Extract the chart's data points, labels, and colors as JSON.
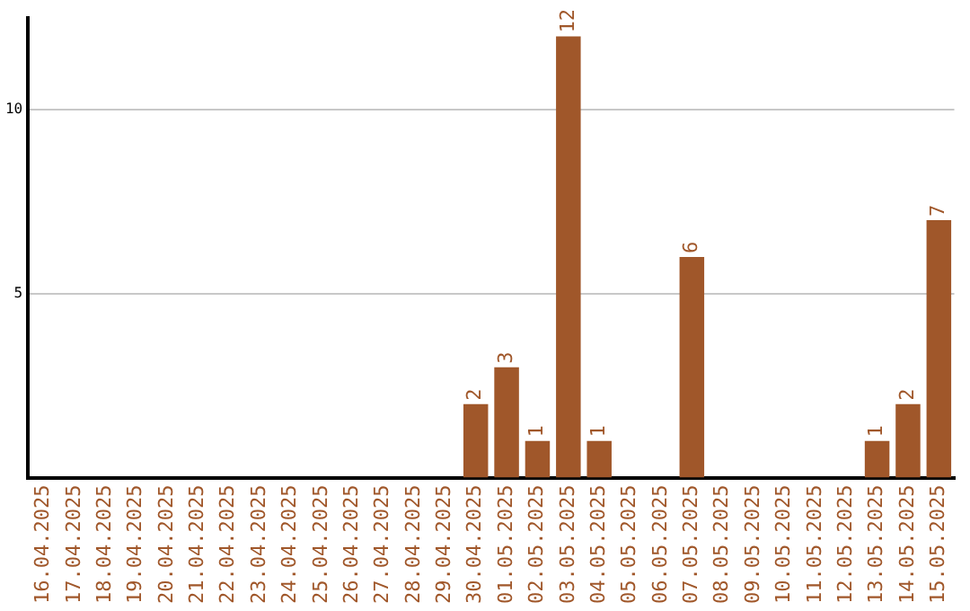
{
  "chart_data": {
    "type": "bar",
    "categories": [
      "16.04.2025",
      "17.04.2025",
      "18.04.2025",
      "19.04.2025",
      "20.04.2025",
      "21.04.2025",
      "22.04.2025",
      "23.04.2025",
      "24.04.2025",
      "25.04.2025",
      "26.04.2025",
      "27.04.2025",
      "28.04.2025",
      "29.04.2025",
      "30.04.2025",
      "01.05.2025",
      "02.05.2025",
      "03.05.2025",
      "04.05.2025",
      "05.05.2025",
      "06.05.2025",
      "07.05.2025",
      "08.05.2025",
      "09.05.2025",
      "10.05.2025",
      "11.05.2025",
      "12.05.2025",
      "13.05.2025",
      "14.05.2025",
      "15.05.2025"
    ],
    "values": [
      0,
      0,
      0,
      0,
      0,
      0,
      0,
      0,
      0,
      0,
      0,
      0,
      0,
      0,
      2,
      3,
      1,
      12,
      1,
      0,
      0,
      6,
      0,
      0,
      0,
      0,
      0,
      1,
      2,
      7
    ],
    "value_labels": [
      null,
      null,
      null,
      null,
      null,
      null,
      null,
      null,
      null,
      null,
      null,
      null,
      null,
      null,
      "2",
      "3",
      "1",
      "12",
      "1",
      null,
      null,
      "6",
      null,
      null,
      null,
      null,
      null,
      "1",
      "2",
      "7"
    ],
    "color": "#a0572a",
    "ylim": [
      0,
      12.5
    ],
    "yticks": [
      5,
      10
    ],
    "grid": "y",
    "legend": false
  }
}
